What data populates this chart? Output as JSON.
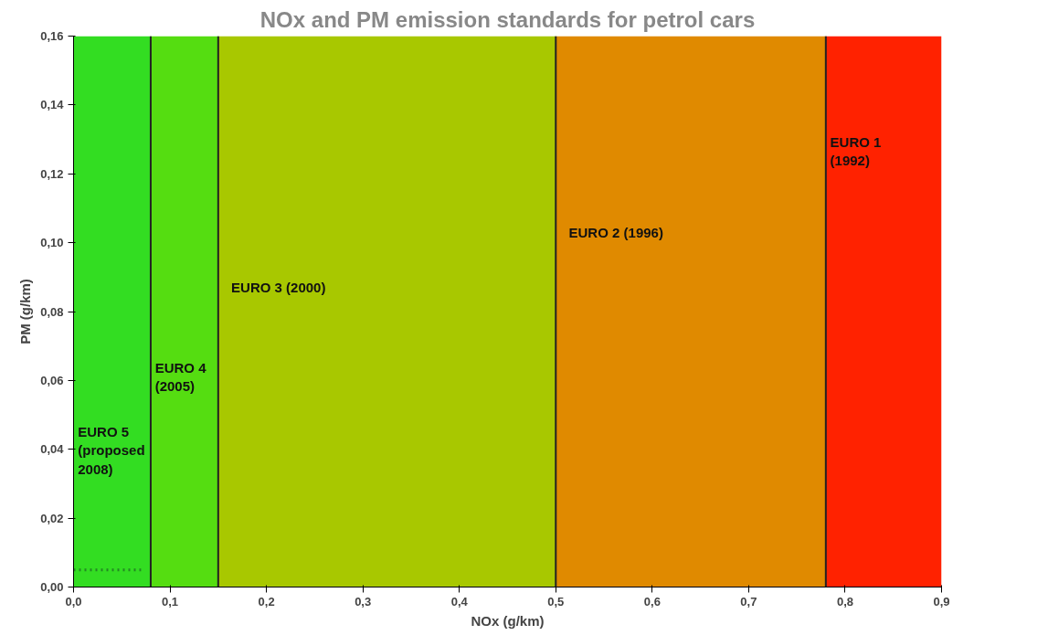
{
  "chart_data": {
    "type": "line",
    "title": "NOx and PM emission standards for petrol cars",
    "xlabel": "NOx (g/km)",
    "ylabel": "PM (g/km)",
    "xlim": [
      0,
      0.9
    ],
    "ylim": [
      0,
      0.16
    ],
    "xticks": [
      {
        "value": 0,
        "label": "0,0"
      },
      {
        "value": 0.1,
        "label": "0,1"
      },
      {
        "value": 0.2,
        "label": "0,2"
      },
      {
        "value": 0.3,
        "label": "0,3"
      },
      {
        "value": 0.4,
        "label": "0,4"
      },
      {
        "value": 0.5,
        "label": "0,5"
      },
      {
        "value": 0.6,
        "label": "0,6"
      },
      {
        "value": 0.7,
        "label": "0,7"
      },
      {
        "value": 0.8,
        "label": "0,8"
      },
      {
        "value": 0.9,
        "label": "0,9"
      }
    ],
    "yticks": [
      {
        "value": 0,
        "label": "0,00"
      },
      {
        "value": 0.02,
        "label": "0,02"
      },
      {
        "value": 0.04,
        "label": "0,04"
      },
      {
        "value": 0.06,
        "label": "0,06"
      },
      {
        "value": 0.08,
        "label": "0,08"
      },
      {
        "value": 0.1,
        "label": "0,10"
      },
      {
        "value": 0.12,
        "label": "0,12"
      },
      {
        "value": 0.14,
        "label": "0,14"
      },
      {
        "value": 0.16,
        "label": "0,16"
      }
    ],
    "bands": [
      {
        "axis": "x",
        "from": 0,
        "to": 0.08,
        "label": "EURO 5 (proposed 2008)",
        "color": "#33dd22"
      },
      {
        "axis": "x",
        "from": 0.08,
        "to": 0.15,
        "label": "EURO 4 (2005)",
        "color": "#55dd11"
      },
      {
        "axis": "x",
        "from": 0.15,
        "to": 0.5,
        "label": "EURO 3 (2000)",
        "color": "#a8c800"
      },
      {
        "axis": "x",
        "from": 0.5,
        "to": 0.78,
        "label": "EURO 2 (1996)",
        "color": "#e08a00"
      },
      {
        "axis": "x",
        "from": 0.78,
        "to": 0.9,
        "label": "EURO 1 (1992)",
        "color": "#ff2200"
      }
    ],
    "ref_lines": [
      {
        "axis": "x",
        "value": 0.08,
        "color": "#222222"
      },
      {
        "axis": "x",
        "value": 0.15,
        "color": "#222222"
      },
      {
        "axis": "x",
        "value": 0.5,
        "color": "#222222"
      },
      {
        "axis": "x",
        "value": 0.78,
        "color": "#222222"
      }
    ],
    "series": [
      {
        "line_style": "dotted",
        "color": "#228822",
        "x": [
          0,
          0.07
        ],
        "values": [
          0.005,
          0.005
        ]
      }
    ]
  }
}
